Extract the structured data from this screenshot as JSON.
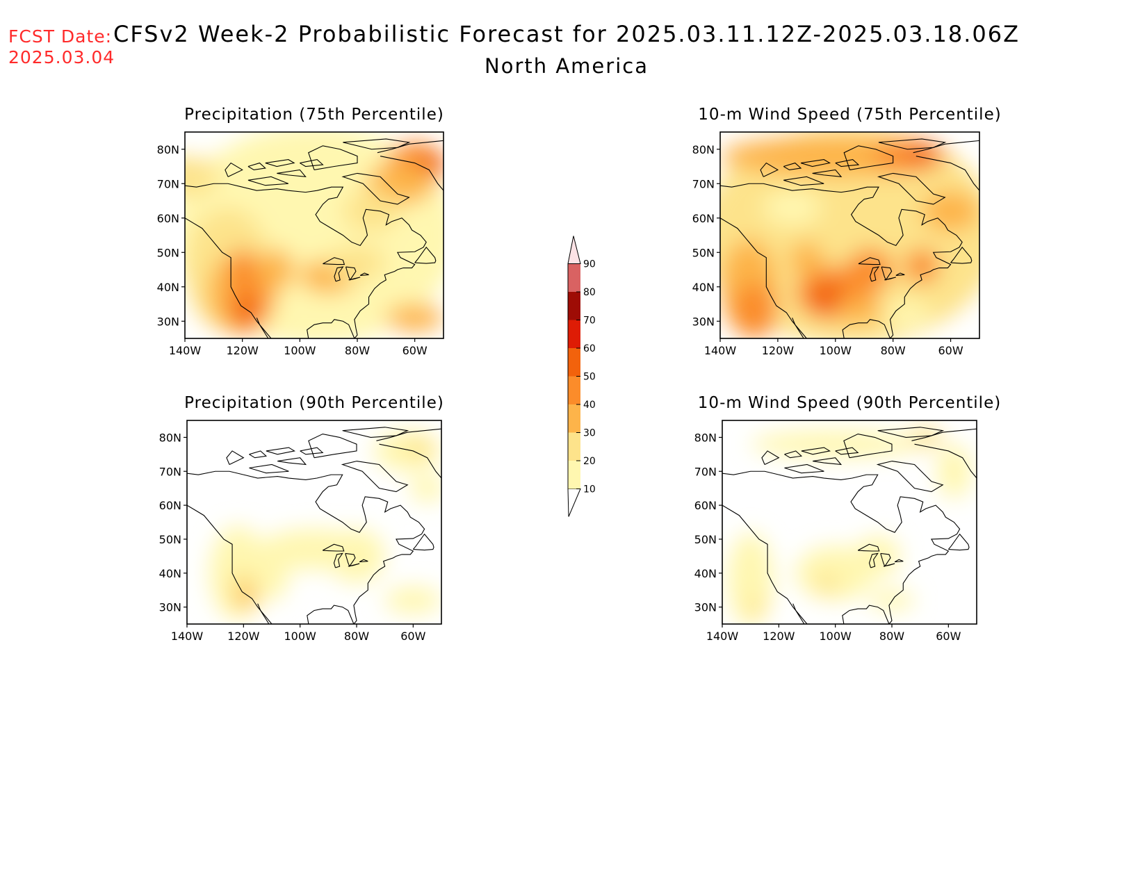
{
  "header": {
    "fcst_label": "FCST Date:",
    "fcst_date": "2025.03.04",
    "title": "CFSv2 Week-2 Probabilistic Forecast for 2025.03.11.12Z-2025.03.18.06Z",
    "subtitle": "North America"
  },
  "axes": {
    "lon_ticks": [
      "140W",
      "120W",
      "100W",
      "80W",
      "60W"
    ],
    "lat_ticks": [
      "80N",
      "70N",
      "60N",
      "50N",
      "40N",
      "30N"
    ]
  },
  "panels": [
    {
      "title": "Precipitation (75th Percentile)",
      "field": "precip75"
    },
    {
      "title": "10-m Wind Speed (75th Percentile)",
      "field": "wind75"
    },
    {
      "title": "Precipitation (90th Percentile)",
      "field": "precip90"
    },
    {
      "title": "10-m Wind Speed (90th Percentile)",
      "field": "wind90"
    }
  ],
  "colorbar": {
    "levels": [
      10,
      20,
      30,
      40,
      50,
      60,
      70,
      80,
      90
    ],
    "labels": [
      "10",
      "20",
      "30",
      "40",
      "50",
      "60",
      "70",
      "80",
      "90"
    ],
    "colors": [
      "#fff7b0",
      "#fde38b",
      "#fdb44a",
      "#fb8c2a",
      "#f2620c",
      "#de1c05",
      "#9e0c05",
      "#d96262",
      "#f3a3a8",
      "#fce2e5"
    ]
  }
}
